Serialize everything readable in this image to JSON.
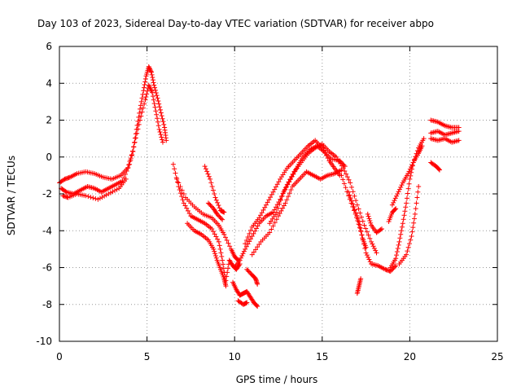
{
  "chart_data": {
    "type": "scatter",
    "title": "Day 103 of 2023, Sidereal Day-to-day VTEC variation (SDTVAR) for receiver abpo",
    "xlabel": "GPS time / hours",
    "ylabel": "SDTVAR / TECUs",
    "xlim": [
      0,
      25
    ],
    "ylim": [
      -10,
      6
    ],
    "xticks": [
      0,
      5,
      10,
      15,
      20,
      25
    ],
    "xtick_labels": [
      "0",
      "5",
      "10",
      "15",
      "20",
      "25"
    ],
    "yticks": [
      -10,
      -8,
      -6,
      -4,
      -2,
      0,
      2,
      4,
      6
    ],
    "ytick_labels": [
      "-10",
      "-8",
      "-6",
      "-4",
      "-2",
      "0",
      "2",
      "4",
      "6"
    ],
    "grid": true,
    "marker": "+",
    "series": [
      {
        "name": "SDTVAR",
        "color": "#ff0000",
        "tracks": [
          [
            [
              0.0,
              -1.4
            ],
            [
              0.3,
              -1.2
            ],
            [
              0.6,
              -1.1
            ],
            [
              1.0,
              -0.9
            ],
            [
              1.5,
              -0.8
            ],
            [
              2.0,
              -0.9
            ],
            [
              2.5,
              -1.1
            ],
            [
              3.0,
              -1.2
            ],
            [
              3.5,
              -1.0
            ],
            [
              3.9,
              -0.6
            ],
            [
              4.2,
              0.3
            ],
            [
              4.4,
              1.5
            ],
            [
              4.6,
              2.6
            ],
            [
              4.8,
              3.6
            ],
            [
              4.95,
              4.4
            ],
            [
              5.1,
              4.9
            ],
            [
              5.25,
              4.6
            ],
            [
              5.4,
              3.9
            ],
            [
              5.6,
              3.2
            ],
            [
              5.8,
              2.4
            ],
            [
              6.0,
              1.6
            ],
            [
              6.1,
              0.9
            ]
          ],
          [
            [
              0.1,
              -1.7
            ],
            [
              0.4,
              -1.9
            ],
            [
              0.8,
              -2.0
            ],
            [
              1.2,
              -1.8
            ],
            [
              1.6,
              -1.6
            ],
            [
              2.0,
              -1.7
            ],
            [
              2.4,
              -1.9
            ],
            [
              2.8,
              -1.7
            ],
            [
              3.2,
              -1.5
            ],
            [
              3.6,
              -1.3
            ],
            [
              4.0,
              -0.4
            ],
            [
              4.3,
              0.8
            ],
            [
              4.6,
              2.0
            ],
            [
              4.9,
              3.1
            ],
            [
              5.1,
              3.9
            ],
            [
              5.3,
              3.5
            ],
            [
              5.5,
              2.5
            ],
            [
              5.7,
              1.5
            ],
            [
              5.9,
              0.8
            ]
          ],
          [
            [
              0.2,
              -2.1
            ],
            [
              0.5,
              -2.2
            ],
            [
              1.0,
              -2.0
            ],
            [
              1.5,
              -2.1
            ],
            [
              2.2,
              -2.3
            ],
            [
              2.8,
              -2.0
            ],
            [
              3.4,
              -1.7
            ],
            [
              3.8,
              -1.2
            ]
          ],
          [
            [
              6.5,
              -0.4
            ],
            [
              6.8,
              -1.6
            ],
            [
              7.1,
              -2.5
            ],
            [
              7.5,
              -3.2
            ],
            [
              7.9,
              -3.4
            ],
            [
              8.3,
              -3.6
            ],
            [
              8.7,
              -3.9
            ],
            [
              9.1,
              -4.6
            ],
            [
              9.3,
              -5.6
            ],
            [
              9.5,
              -6.7
            ],
            [
              9.7,
              -5.6
            ],
            [
              9.9,
              -5.9
            ],
            [
              10.1,
              -6.1
            ],
            [
              10.3,
              -5.8
            ]
          ],
          [
            [
              6.7,
              -1.2
            ],
            [
              7.2,
              -2.2
            ],
            [
              7.7,
              -2.7
            ],
            [
              8.2,
              -3.1
            ],
            [
              8.7,
              -3.3
            ],
            [
              9.1,
              -3.7
            ],
            [
              9.4,
              -4.2
            ],
            [
              9.8,
              -5.0
            ],
            [
              10.0,
              -5.4
            ],
            [
              10.2,
              -5.6
            ]
          ],
          [
            [
              7.3,
              -3.6
            ],
            [
              7.7,
              -4.0
            ],
            [
              8.1,
              -4.2
            ],
            [
              8.5,
              -4.5
            ],
            [
              8.8,
              -5.0
            ],
            [
              9.0,
              -5.6
            ],
            [
              9.2,
              -6.1
            ],
            [
              9.4,
              -6.6
            ],
            [
              9.5,
              -7.0
            ]
          ],
          [
            [
              8.5,
              -2.5
            ],
            [
              8.8,
              -2.8
            ],
            [
              9.0,
              -3.1
            ],
            [
              9.3,
              -3.4
            ]
          ],
          [
            [
              8.3,
              -0.5
            ],
            [
              8.6,
              -1.2
            ],
            [
              8.9,
              -2.2
            ],
            [
              9.2,
              -2.9
            ],
            [
              9.4,
              -3.0
            ]
          ],
          [
            [
              9.9,
              -6.8
            ],
            [
              10.1,
              -7.2
            ],
            [
              10.3,
              -7.5
            ],
            [
              10.5,
              -7.4
            ],
            [
              10.7,
              -7.3
            ],
            [
              10.9,
              -7.6
            ],
            [
              11.1,
              -7.9
            ],
            [
              11.3,
              -8.1
            ]
          ],
          [
            [
              10.2,
              -7.8
            ],
            [
              10.5,
              -8.0
            ],
            [
              10.7,
              -7.9
            ]
          ],
          [
            [
              10.7,
              -6.1
            ],
            [
              11.0,
              -6.4
            ],
            [
              11.2,
              -6.6
            ],
            [
              11.3,
              -6.9
            ]
          ],
          [
            [
              10.0,
              -6.0
            ],
            [
              10.3,
              -5.6
            ],
            [
              10.6,
              -5.0
            ],
            [
              11.0,
              -4.3
            ],
            [
              11.4,
              -3.6
            ],
            [
              11.8,
              -3.2
            ],
            [
              12.2,
              -3.0
            ],
            [
              12.6,
              -2.3
            ],
            [
              13.0,
              -1.5
            ],
            [
              13.4,
              -0.8
            ],
            [
              13.8,
              -0.3
            ],
            [
              14.2,
              0.2
            ],
            [
              14.6,
              0.5
            ],
            [
              15.0,
              0.7
            ],
            [
              15.4,
              0.3
            ],
            [
              15.8,
              0.0
            ],
            [
              16.2,
              -0.6
            ],
            [
              16.6,
              -1.4
            ],
            [
              17.0,
              -2.6
            ],
            [
              17.4,
              -3.7
            ],
            [
              17.8,
              -4.6
            ],
            [
              18.1,
              -5.2
            ]
          ],
          [
            [
              10.6,
              -4.7
            ],
            [
              11.0,
              -3.8
            ],
            [
              11.4,
              -3.3
            ],
            [
              11.8,
              -2.6
            ],
            [
              12.2,
              -1.9
            ],
            [
              12.6,
              -1.2
            ],
            [
              13.0,
              -0.6
            ],
            [
              13.4,
              -0.2
            ],
            [
              13.8,
              0.2
            ],
            [
              14.2,
              0.6
            ],
            [
              14.6,
              0.9
            ],
            [
              15.0,
              0.5
            ],
            [
              15.4,
              -0.2
            ],
            [
              15.7,
              -0.6
            ],
            [
              16.0,
              -1.0
            ]
          ],
          [
            [
              11.0,
              -5.3
            ],
            [
              11.5,
              -4.6
            ],
            [
              12.0,
              -4.1
            ],
            [
              12.5,
              -3.2
            ],
            [
              12.9,
              -2.5
            ],
            [
              13.3,
              -1.6
            ],
            [
              13.7,
              -1.2
            ],
            [
              14.1,
              -0.8
            ],
            [
              14.5,
              -1.0
            ],
            [
              14.9,
              -1.2
            ],
            [
              15.3,
              -1.0
            ],
            [
              15.7,
              -0.9
            ],
            [
              16.1,
              -0.7
            ]
          ],
          [
            [
              12.0,
              -3.6
            ],
            [
              12.4,
              -3.0
            ],
            [
              12.8,
              -1.9
            ],
            [
              13.2,
              -1.2
            ],
            [
              13.6,
              -0.5
            ],
            [
              13.9,
              0.0
            ],
            [
              14.3,
              0.4
            ],
            [
              14.7,
              0.6
            ],
            [
              15.1,
              0.3
            ],
            [
              15.5,
              -0.1
            ],
            [
              16.0,
              -0.2
            ],
            [
              16.3,
              -0.5
            ]
          ],
          [
            [
              16.1,
              -1.0
            ],
            [
              16.5,
              -2.1
            ],
            [
              16.9,
              -3.1
            ],
            [
              17.2,
              -4.0
            ],
            [
              17.5,
              -5.2
            ],
            [
              17.8,
              -5.8
            ],
            [
              18.2,
              -5.9
            ],
            [
              18.6,
              -6.1
            ],
            [
              18.9,
              -6.2
            ],
            [
              19.2,
              -5.9
            ]
          ],
          [
            [
              16.5,
              -1.9
            ],
            [
              16.8,
              -2.7
            ],
            [
              17.1,
              -3.5
            ],
            [
              17.3,
              -4.4
            ],
            [
              17.5,
              -4.9
            ]
          ],
          [
            [
              17.0,
              -7.4
            ],
            [
              17.1,
              -7.0
            ],
            [
              17.2,
              -6.6
            ]
          ],
          [
            [
              17.6,
              -3.1
            ],
            [
              17.8,
              -3.7
            ],
            [
              18.1,
              -4.1
            ],
            [
              18.4,
              -3.9
            ]
          ],
          [
            [
              18.9,
              -6.0
            ],
            [
              19.2,
              -5.5
            ],
            [
              19.4,
              -4.6
            ],
            [
              19.6,
              -3.6
            ],
            [
              19.8,
              -2.5
            ],
            [
              20.0,
              -1.2
            ],
            [
              20.2,
              -0.3
            ],
            [
              20.5,
              0.5
            ],
            [
              20.8,
              1.0
            ]
          ],
          [
            [
              19.0,
              -2.6
            ],
            [
              19.3,
              -2.0
            ],
            [
              19.6,
              -1.4
            ],
            [
              19.9,
              -0.9
            ],
            [
              20.2,
              -0.3
            ],
            [
              20.5,
              0.2
            ],
            [
              20.7,
              0.6
            ]
          ],
          [
            [
              19.4,
              -5.8
            ],
            [
              19.8,
              -5.3
            ],
            [
              20.1,
              -4.3
            ],
            [
              20.3,
              -3.1
            ],
            [
              20.5,
              -1.6
            ]
          ],
          [
            [
              18.8,
              -3.5
            ],
            [
              19.0,
              -3.0
            ],
            [
              19.2,
              -2.8
            ]
          ],
          [
            [
              21.2,
              -0.3
            ],
            [
              21.5,
              -0.5
            ],
            [
              21.7,
              -0.7
            ]
          ],
          [
            [
              21.2,
              2.0
            ],
            [
              21.6,
              1.9
            ],
            [
              22.0,
              1.7
            ],
            [
              22.4,
              1.6
            ],
            [
              22.8,
              1.6
            ]
          ],
          [
            [
              21.2,
              1.3
            ],
            [
              21.6,
              1.4
            ],
            [
              22.0,
              1.2
            ],
            [
              22.4,
              1.3
            ],
            [
              22.8,
              1.4
            ]
          ],
          [
            [
              21.2,
              1.0
            ],
            [
              21.6,
              0.9
            ],
            [
              22.0,
              1.0
            ],
            [
              22.4,
              0.8
            ],
            [
              22.8,
              0.9
            ]
          ]
        ]
      }
    ]
  }
}
